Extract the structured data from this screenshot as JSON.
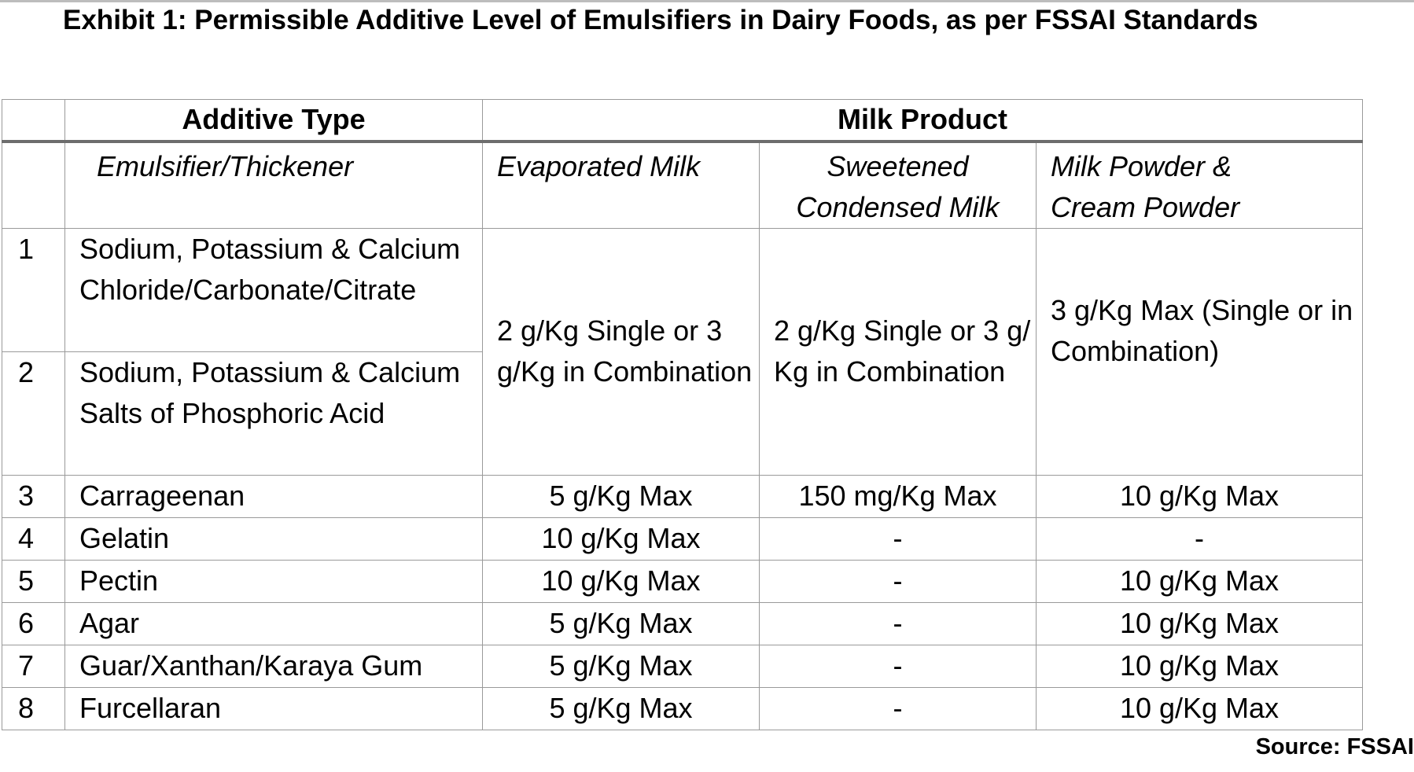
{
  "title": "Exhibit 1: Permissible Additive Level of Emulsifiers in Dairy Foods, as per FSSAI Standards",
  "header": {
    "additive_type": "Additive Type",
    "milk_product": "Milk Product"
  },
  "subheader": {
    "emulsifier": "Emulsifier/Thickener",
    "evaporated": "Evaporated Milk",
    "sweetened_line1": "Sweetened",
    "sweetened_line2": "Condensed Milk",
    "powder_line1": "Milk Powder &",
    "powder_line2": "Cream Powder"
  },
  "merged": {
    "evaporated": "2 g/Kg Single or 3 g/Kg in Combination",
    "sweetened": "2 g/Kg Single or 3 g/ Kg in Combination",
    "powder": "3 g/Kg Max (Single or in Combination)"
  },
  "rows": [
    {
      "num": "1",
      "additive": "Sodium, Potassium & Calcium Chloride/Carbonate/Citrate"
    },
    {
      "num": "2",
      "additive": "Sodium, Potassium & Calcium Salts of Phosphoric Acid"
    },
    {
      "num": "3",
      "additive": "Carrageenan",
      "evaporated": "5 g/Kg Max",
      "sweetened": "150 mg/Kg Max",
      "powder": "10 g/Kg Max"
    },
    {
      "num": "4",
      "additive": "Gelatin",
      "evaporated": "10 g/Kg Max",
      "sweetened": "-",
      "powder": "-"
    },
    {
      "num": "5",
      "additive": "Pectin",
      "evaporated": "10 g/Kg Max",
      "sweetened": "-",
      "powder": "10 g/Kg Max"
    },
    {
      "num": "6",
      "additive": "Agar",
      "evaporated": "5 g/Kg Max",
      "sweetened": "-",
      "powder": "10 g/Kg Max"
    },
    {
      "num": "7",
      "additive": "Guar/Xanthan/Karaya Gum",
      "evaporated": "5 g/Kg Max",
      "sweetened": "-",
      "powder": "10 g/Kg Max"
    },
    {
      "num": "8",
      "additive": "Furcellaran",
      "evaporated": "5 g/Kg Max",
      "sweetened": "-",
      "powder": "10 g/Kg Max"
    }
  ],
  "source": "Source: FSSAI"
}
